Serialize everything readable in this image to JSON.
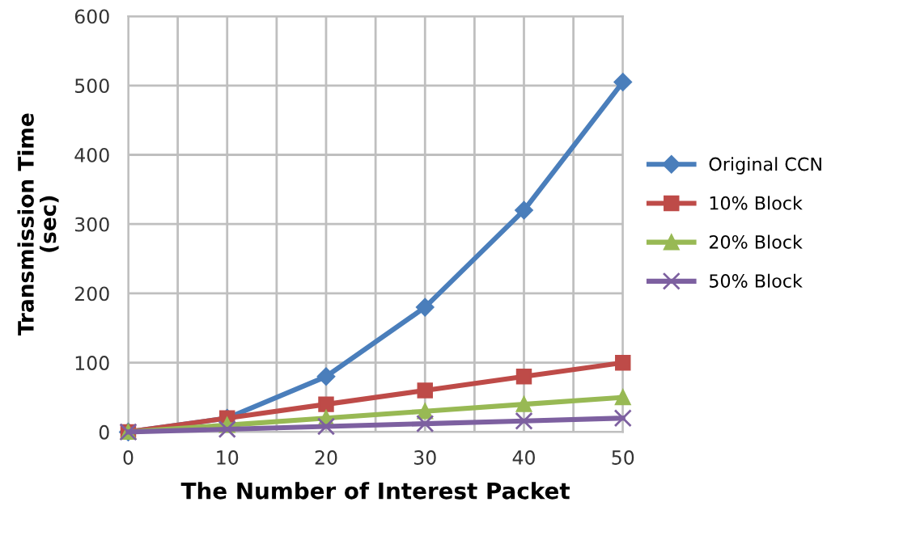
{
  "chart_data": {
    "type": "line",
    "xlabel": "The Number of Interest Packet",
    "ylabel": "Transmission Time\n(sec)",
    "x": [
      0,
      10,
      20,
      30,
      40,
      50
    ],
    "series": [
      {
        "name": "Original CCN",
        "color": "#4a7ebb",
        "marker": "diamond",
        "values": [
          0,
          20,
          80,
          180,
          320,
          505
        ]
      },
      {
        "name": "10% Block",
        "color": "#be4b48",
        "marker": "square",
        "values": [
          0,
          20,
          40,
          60,
          80,
          100
        ]
      },
      {
        "name": "20% Block",
        "color": "#98b954",
        "marker": "triangle",
        "values": [
          0,
          10,
          20,
          30,
          40,
          50
        ]
      },
      {
        "name": "50% Block",
        "color": "#7d60a0",
        "marker": "cross",
        "values": [
          0,
          4,
          8,
          12,
          16,
          20
        ]
      }
    ],
    "xlim": [
      0,
      50
    ],
    "xticks": [
      0,
      {
        "value": 5,
        "label": null
      },
      10,
      {
        "value": 15,
        "label": null
      },
      20,
      {
        "value": 25,
        "label": null
      },
      30,
      {
        "value": 35,
        "label": null
      },
      40,
      {
        "value": 45,
        "label": null
      },
      50
    ],
    "ylim": [
      0,
      600
    ],
    "yticks": [
      0,
      100,
      200,
      300,
      400,
      500,
      600
    ],
    "grid": true,
    "legend": "right",
    "line_style": "solid"
  }
}
